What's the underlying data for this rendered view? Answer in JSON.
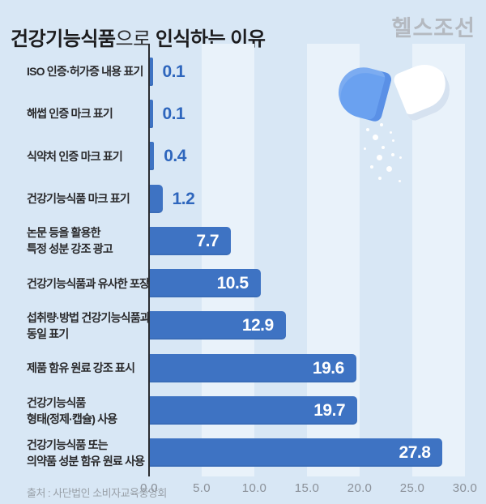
{
  "header": {
    "title_bold1": "건강기능식품",
    "title_regular": "으로",
    "title_bold2": " 인식하는 이유",
    "logo": "헬스조선"
  },
  "footer": {
    "source": "출처 : 사단법인 소비자교육중앙회"
  },
  "colors": {
    "background": "#d8e7f5",
    "stripe_band": "#e9f2fa",
    "bar": "#3e73c3",
    "value_inside_text": "#ffffff",
    "value_outside_text": "#2e66bd",
    "axis_line": "#2b2d31",
    "axis_tick_text": "#8b9199",
    "title_text": "#1c1c1e",
    "logo_text": "#b4b9c0",
    "source_text": "#99a0a8",
    "capsule_blue": "#6aa1f0",
    "capsule_blue_rim": "#5a90e6",
    "capsule_white": "#ffffff",
    "capsule_white_shadow": "#d6e2f0"
  },
  "illustration": {
    "name": "open-capsule-spilling-powder"
  },
  "chart_data": {
    "type": "bar",
    "orientation": "horizontal",
    "title": "건강기능식품으로 인식하는 이유",
    "categories": [
      [
        "ISO 인증·허가증 내용 표기"
      ],
      [
        "해썹 인증 마크 표기"
      ],
      [
        "식약처 인증 마크 표기"
      ],
      [
        "건강기능식품 마크 표기"
      ],
      [
        "논문 등을 활용한",
        "특정 성분 강조 광고"
      ],
      [
        "건강기능식품과 유사한 포장"
      ],
      [
        "섭취량·방법 건강기능식품과",
        "동일 표기"
      ],
      [
        "제품 함유 원료 강조 표시"
      ],
      [
        "건강기능식품",
        "형태(정제·캡슐) 사용"
      ],
      [
        "건강기능식품 또는",
        "의약품 성분 함유 원료 사용"
      ]
    ],
    "values": [
      0.1,
      0.1,
      0.4,
      1.2,
      7.7,
      10.5,
      12.9,
      19.6,
      19.7,
      27.8
    ],
    "xlabel": "",
    "ylabel": "",
    "xlim": [
      0,
      30
    ],
    "xticks": [
      "0.0",
      "5.0",
      "10.0",
      "15.0",
      "20.0",
      "25.0",
      "30.0"
    ],
    "grid": "alternating vertical bands every 5 units",
    "legend": false,
    "value_labels": "shown; inside bar (white) for large bars, outside (blue) for small bars"
  }
}
